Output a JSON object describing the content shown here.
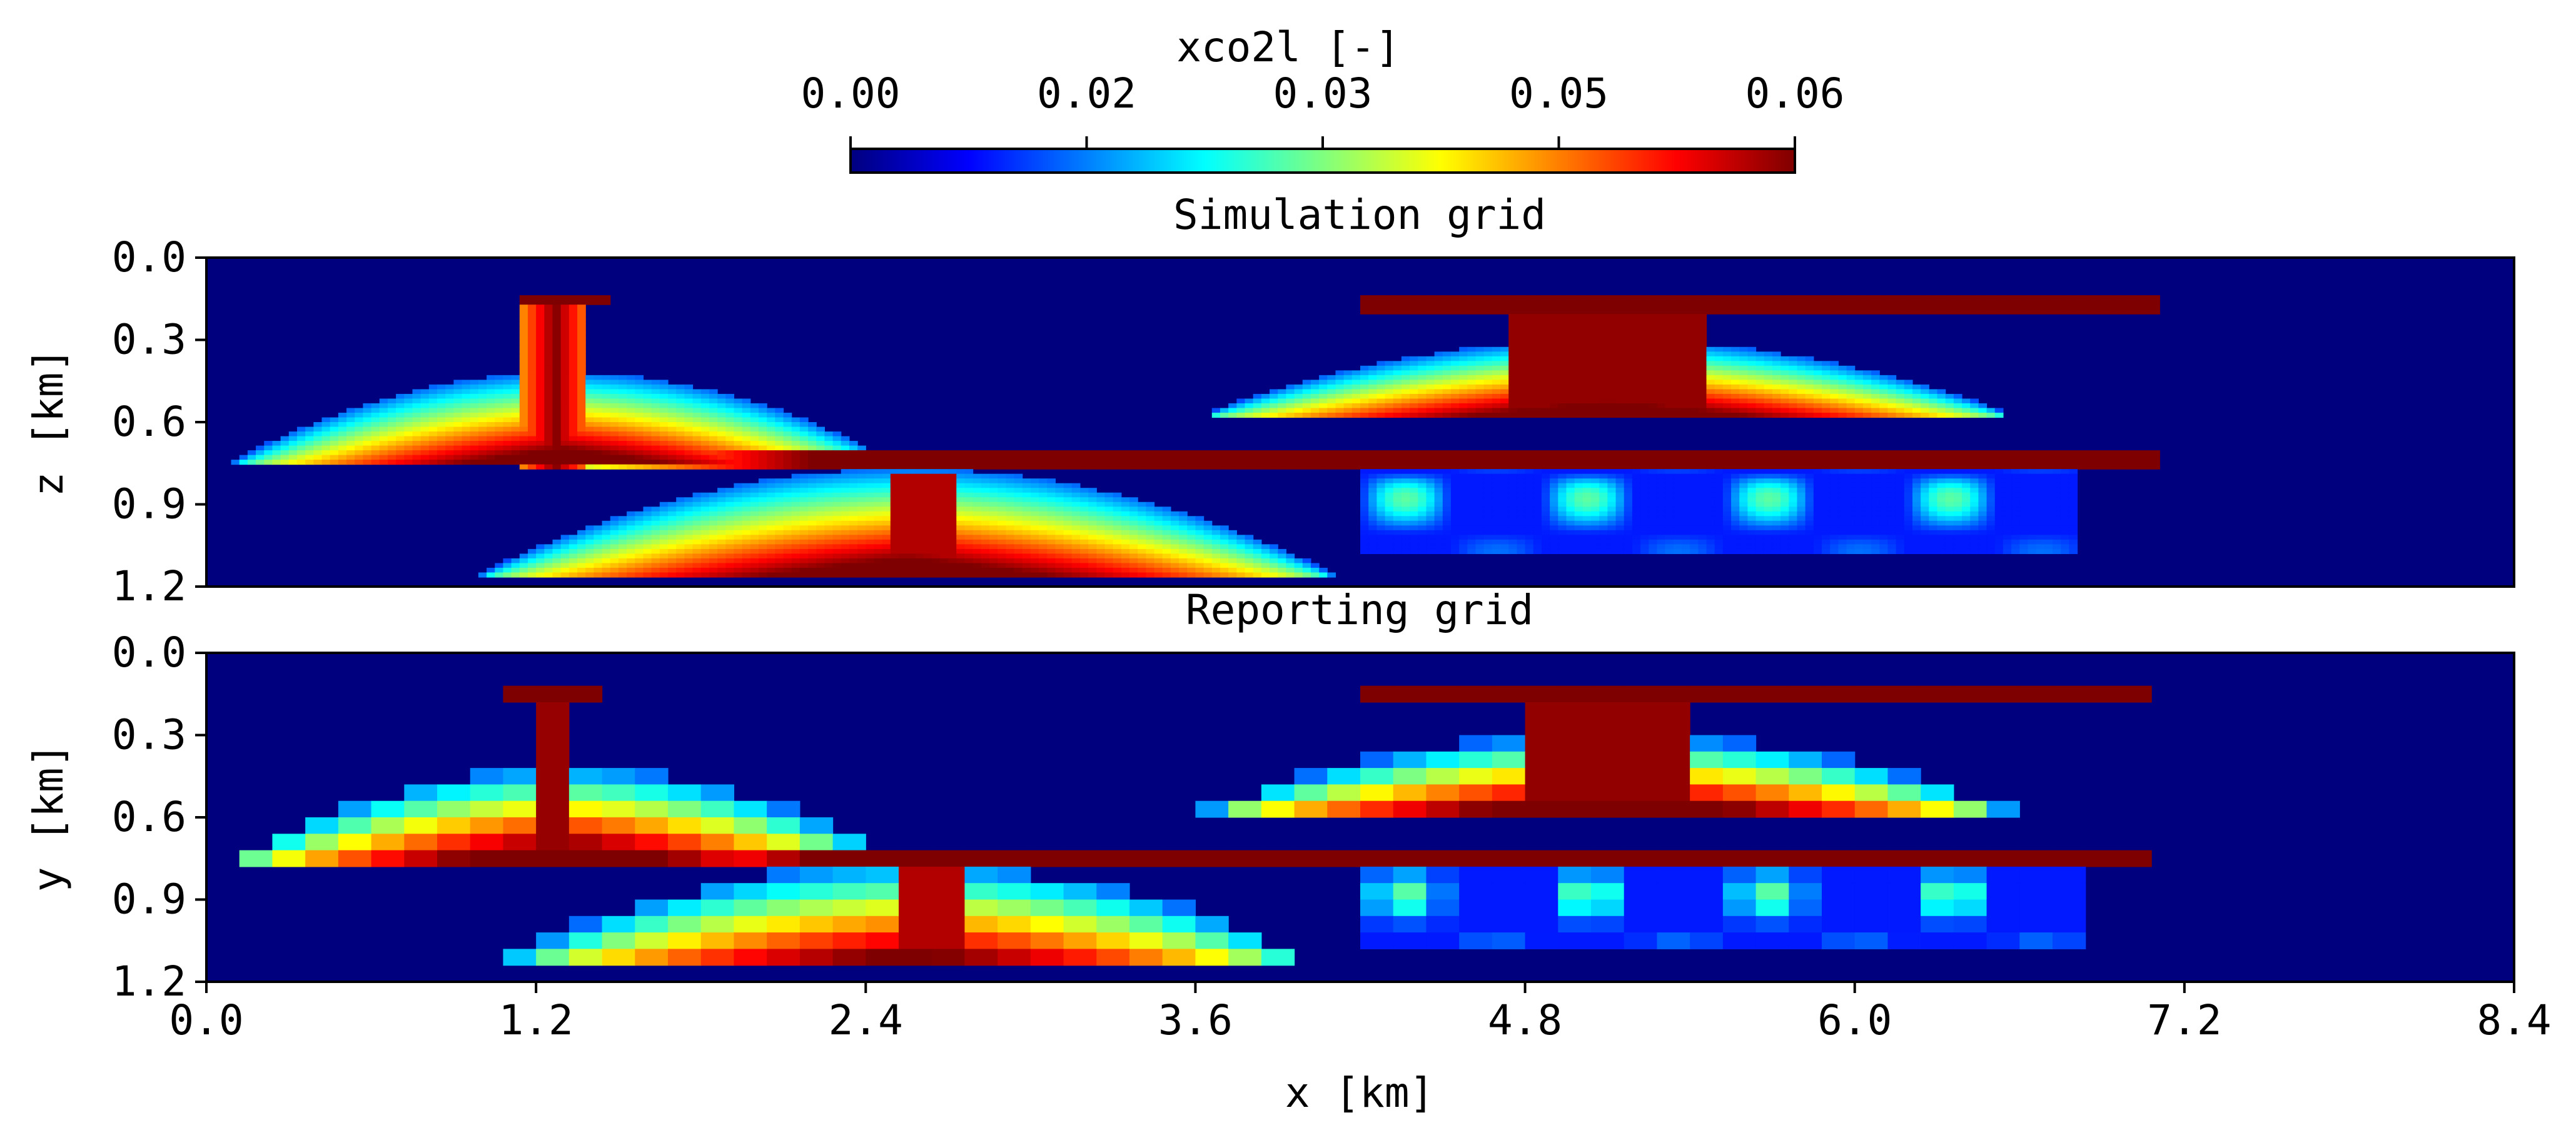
{
  "chart_data": [
    {
      "type": "heatmap",
      "title": "Simulation grid",
      "ylabel": "z [km]",
      "xlabel": "",
      "xlim": [
        0.0,
        8.4
      ],
      "ylim": [
        1.2,
        0.0
      ],
      "yticks": [
        "0.0",
        "0.3",
        "0.6",
        "0.9",
        "1.2"
      ],
      "yticks_values": [
        0.0,
        0.3,
        0.6,
        0.9,
        1.2
      ],
      "colormap": "jet",
      "clim": [
        0.0,
        0.06
      ],
      "background_value": 0.0,
      "features": [
        {
          "kind": "plume",
          "x": [
            0.1,
            2.25
          ],
          "y": [
            0.42,
            0.75
          ],
          "peak": 0.06
        },
        {
          "kind": "plume",
          "x": [
            1.05,
            1.45
          ],
          "y": [
            0.13,
            0.78
          ],
          "peak": 0.06
        },
        {
          "kind": "plume",
          "x": [
            1.0,
            3.6
          ],
          "y": [
            0.75,
            1.17
          ],
          "peak": 0.06
        },
        {
          "kind": "layer",
          "x": [
            1.3,
            7.1
          ],
          "y": [
            0.7,
            0.77
          ],
          "peak": 0.06
        },
        {
          "kind": "plume",
          "x": [
            3.65,
            6.5
          ],
          "y": [
            0.14,
            0.57
          ],
          "peak": 0.06
        },
        {
          "kind": "fingers",
          "x": [
            4.2,
            6.8
          ],
          "y": [
            0.75,
            1.08
          ],
          "peak": 0.035
        }
      ]
    },
    {
      "type": "heatmap",
      "title": "Reporting grid",
      "ylabel": "y [km]",
      "xlabel": "x [km]",
      "xlim": [
        0.0,
        8.4
      ],
      "ylim": [
        1.2,
        0.0
      ],
      "xticks": [
        "0.0",
        "1.2",
        "2.4",
        "3.6",
        "4.8",
        "6.0",
        "7.2",
        "8.4"
      ],
      "xticks_values": [
        0.0,
        1.2,
        2.4,
        3.6,
        4.8,
        6.0,
        7.2,
        8.4
      ],
      "yticks": [
        "0.0",
        "0.3",
        "0.6",
        "0.9",
        "1.2"
      ],
      "yticks_values": [
        0.0,
        0.3,
        0.6,
        0.9,
        1.2
      ],
      "grid_cells": [
        70,
        20
      ],
      "colormap": "jet",
      "clim": [
        0.0,
        0.06
      ],
      "background_value": 0.0
    }
  ],
  "colorbar": {
    "label": "xco2l [-]",
    "ticks": [
      "0.00",
      "0.02",
      "0.03",
      "0.05",
      "0.06"
    ],
    "ticks_values": [
      0.0,
      0.015,
      0.03,
      0.045,
      0.06
    ],
    "orientation": "horizontal",
    "location": "top"
  },
  "colors": {
    "jet": [
      "#00007f",
      "#0000ff",
      "#007fff",
      "#00ffff",
      "#7fff7f",
      "#ffff00",
      "#ff7f00",
      "#ff0000",
      "#7f0000"
    ],
    "background": "#00007f"
  }
}
